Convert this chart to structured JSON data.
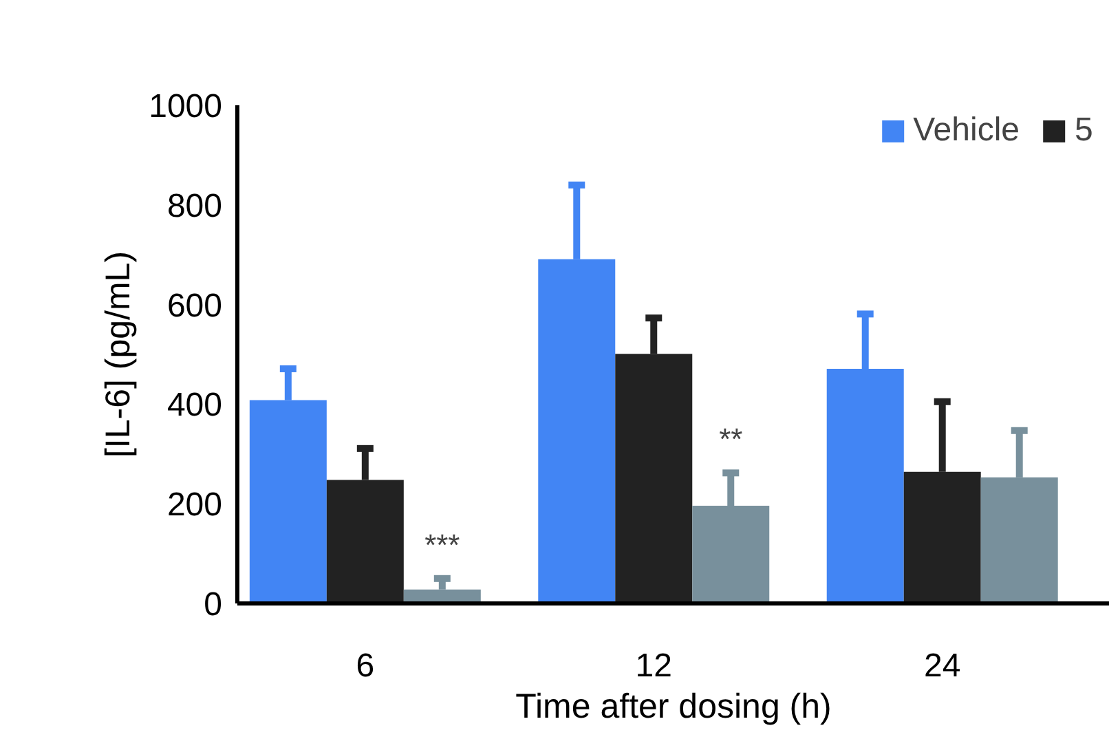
{
  "chart_data": {
    "type": "bar",
    "xlabel": "Time after dosing (h)",
    "ylabel": "[IL-6] (pg/mL)",
    "categories": [
      "6",
      "12",
      "24"
    ],
    "series": [
      {
        "name": "Vehicle",
        "color": "#4285f4",
        "values": [
          408,
          691,
          471
        ],
        "errors": [
          [
            408,
            471
          ],
          [
            691,
            840
          ],
          [
            471,
            581
          ]
        ]
      },
      {
        "name": "5",
        "color": "#222222",
        "values": [
          248,
          501,
          264
        ],
        "errors": [
          [
            248,
            311
          ],
          [
            501,
            573
          ],
          [
            264,
            405
          ]
        ]
      },
      {
        "color": "#78909c",
        "values": [
          28,
          196,
          253
        ],
        "errors": [
          [
            28,
            50
          ],
          [
            196,
            262
          ],
          [
            253,
            347
          ]
        ]
      }
    ],
    "ylim": [
      0,
      1000
    ],
    "yticks": [
      0,
      200,
      400,
      600,
      800,
      1000
    ],
    "legend": "top right",
    "annotations": [
      "***",
      "**"
    ]
  }
}
